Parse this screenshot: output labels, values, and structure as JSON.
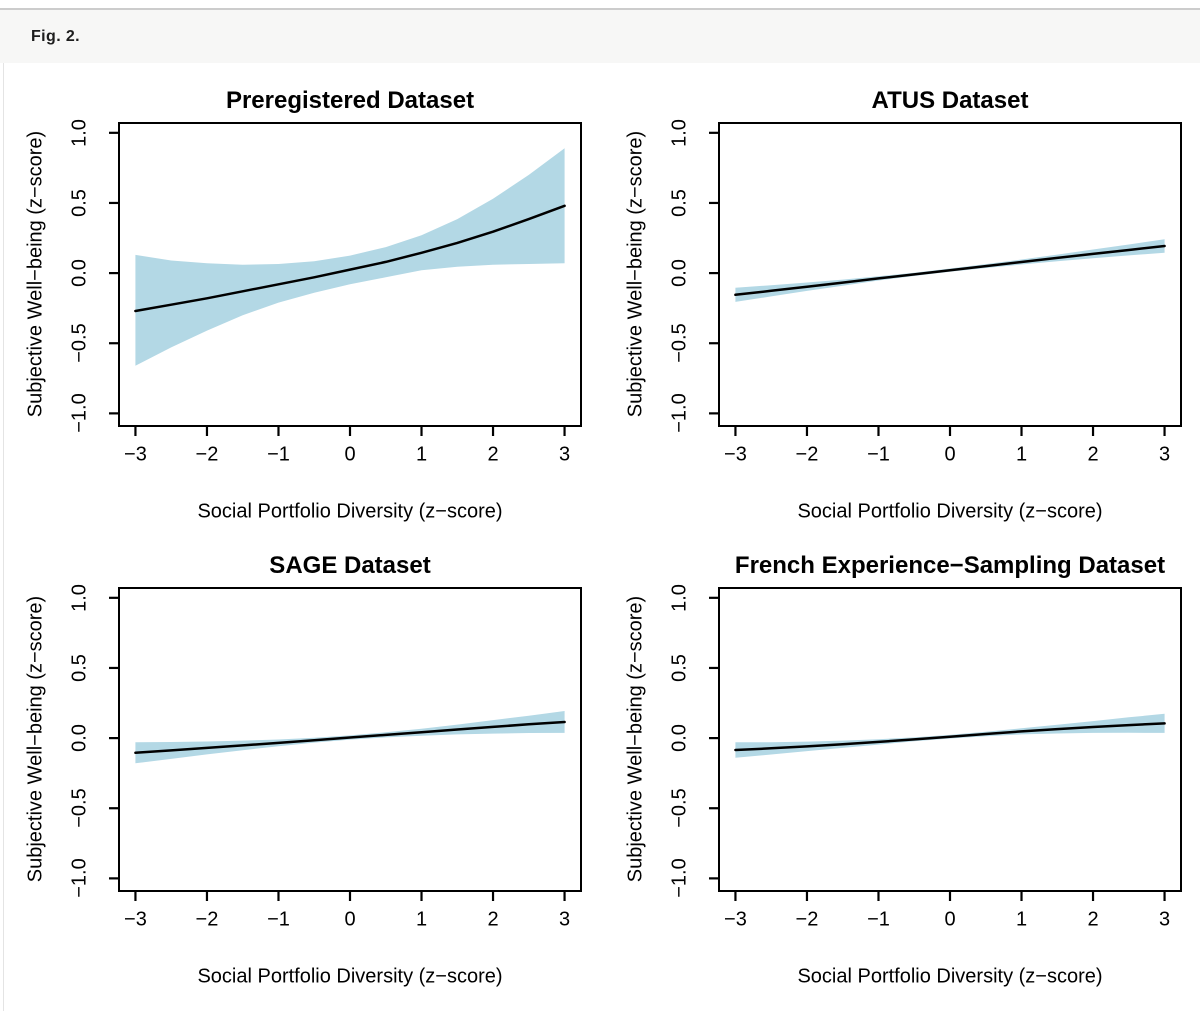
{
  "page": {
    "figure_label": "Fig. 2.",
    "background": "#ffffff",
    "header_background": "#f7f7f6",
    "header_border_color": "#cccccc"
  },
  "chart_data": [
    {
      "type": "line",
      "title": "Preregistered Dataset",
      "xlabel": "Social Portfolio Diversity (z−score)",
      "ylabel": "Subjective Well−being (z−score)",
      "xlim": [
        -3.23,
        3.23
      ],
      "ylim": [
        -1.09,
        1.07
      ],
      "grid": false,
      "legend": "none",
      "band_color": "#b3d8e5",
      "line_color": "#000000",
      "x_tick_values": [
        -3,
        -2,
        -1,
        0,
        1,
        2,
        3
      ],
      "x_tick_labels": [
        "−3",
        "−2",
        "−1",
        "0",
        "1",
        "2",
        "3"
      ],
      "y_tick_values": [
        -1.0,
        -0.5,
        0.0,
        0.5,
        1.0
      ],
      "y_tick_labels": [
        "−1.0",
        "−0.5",
        "0.0",
        "0.5",
        "1.0"
      ],
      "x": [
        -3,
        -2.5,
        -2,
        -1.5,
        -1,
        -0.5,
        0,
        0.5,
        1,
        1.5,
        2,
        2.5,
        3
      ],
      "fit": [
        -0.27,
        -0.225,
        -0.18,
        -0.13,
        -0.08,
        -0.03,
        0.025,
        0.08,
        0.145,
        0.215,
        0.295,
        0.385,
        0.48
      ],
      "ci_lower": [
        -0.66,
        -0.53,
        -0.41,
        -0.3,
        -0.21,
        -0.14,
        -0.08,
        -0.03,
        0.02,
        0.045,
        0.06,
        0.065,
        0.07
      ],
      "ci_upper": [
        0.13,
        0.09,
        0.07,
        0.06,
        0.065,
        0.085,
        0.125,
        0.185,
        0.27,
        0.385,
        0.53,
        0.7,
        0.89
      ]
    },
    {
      "type": "line",
      "title": "ATUS Dataset",
      "xlabel": "Social Portfolio Diversity (z−score)",
      "ylabel": "Subjective Well−being (z−score)",
      "xlim": [
        -3.23,
        3.23
      ],
      "ylim": [
        -1.09,
        1.07
      ],
      "grid": false,
      "legend": "none",
      "band_color": "#b3d8e5",
      "line_color": "#000000",
      "x_tick_values": [
        -3,
        -2,
        -1,
        0,
        1,
        2,
        3
      ],
      "x_tick_labels": [
        "−3",
        "−2",
        "−1",
        "0",
        "1",
        "2",
        "3"
      ],
      "y_tick_values": [
        -1.0,
        -0.5,
        0.0,
        0.5,
        1.0
      ],
      "y_tick_labels": [
        "−1.0",
        "−0.5",
        "0.0",
        "0.5",
        "1.0"
      ],
      "x": [
        -3,
        -2.5,
        -2,
        -1.5,
        -1,
        -0.5,
        0,
        0.5,
        1,
        1.5,
        2,
        2.5,
        3
      ],
      "fit": [
        -0.155,
        -0.126,
        -0.097,
        -0.068,
        -0.038,
        -0.009,
        0.021,
        0.05,
        0.079,
        0.108,
        0.137,
        0.165,
        0.193
      ],
      "ci_lower": [
        -0.205,
        -0.166,
        -0.127,
        -0.09,
        -0.053,
        -0.021,
        0.009,
        0.036,
        0.061,
        0.084,
        0.106,
        0.126,
        0.145
      ],
      "ci_upper": [
        -0.105,
        -0.086,
        -0.067,
        -0.046,
        -0.023,
        0.003,
        0.033,
        0.064,
        0.097,
        0.132,
        0.168,
        0.204,
        0.241
      ]
    },
    {
      "type": "line",
      "title": "SAGE Dataset",
      "xlabel": "Social Portfolio Diversity (z−score)",
      "ylabel": "Subjective Well−being (z−score)",
      "xlim": [
        -3.23,
        3.23
      ],
      "ylim": [
        -1.09,
        1.07
      ],
      "grid": false,
      "legend": "none",
      "band_color": "#b3d8e5",
      "line_color": "#000000",
      "x_tick_values": [
        -3,
        -2,
        -1,
        0,
        1,
        2,
        3
      ],
      "x_tick_labels": [
        "−3",
        "−2",
        "−1",
        "0",
        "1",
        "2",
        "3"
      ],
      "y_tick_values": [
        -1.0,
        -0.5,
        0.0,
        0.5,
        1.0
      ],
      "y_tick_labels": [
        "−1.0",
        "−0.5",
        "0.0",
        "0.5",
        "1.0"
      ],
      "x": [
        -3,
        -2.5,
        -2,
        -1.5,
        -1,
        -0.5,
        0,
        0.5,
        1,
        1.5,
        2,
        2.5,
        3
      ],
      "fit": [
        -0.105,
        -0.088,
        -0.07,
        -0.052,
        -0.034,
        -0.015,
        0.004,
        0.023,
        0.042,
        0.061,
        0.08,
        0.098,
        0.115
      ],
      "ci_lower": [
        -0.18,
        -0.148,
        -0.116,
        -0.086,
        -0.058,
        -0.032,
        -0.011,
        0.005,
        0.017,
        0.026,
        0.032,
        0.036,
        0.037
      ],
      "ci_upper": [
        -0.03,
        -0.028,
        -0.024,
        -0.018,
        -0.01,
        0.002,
        0.019,
        0.041,
        0.067,
        0.096,
        0.128,
        0.16,
        0.193
      ]
    },
    {
      "type": "line",
      "title": "French Experience−Sampling Dataset",
      "xlabel": "Social Portfolio Diversity (z−score)",
      "ylabel": "Subjective Well−being (z−score)",
      "xlim": [
        -3.23,
        3.23
      ],
      "ylim": [
        -1.09,
        1.07
      ],
      "grid": false,
      "legend": "none",
      "band_color": "#b3d8e5",
      "line_color": "#000000",
      "x_tick_values": [
        -3,
        -2,
        -1,
        0,
        1,
        2,
        3
      ],
      "x_tick_labels": [
        "−3",
        "−2",
        "−1",
        "0",
        "1",
        "2",
        "3"
      ],
      "y_tick_values": [
        -1.0,
        -0.5,
        0.0,
        0.5,
        1.0
      ],
      "y_tick_labels": [
        "−1.0",
        "−0.5",
        "0.0",
        "0.5",
        "1.0"
      ],
      "x": [
        -3,
        -2.5,
        -2,
        -1.5,
        -1,
        -0.5,
        0,
        0.5,
        1,
        1.5,
        2,
        2.5,
        3
      ],
      "fit": [
        -0.085,
        -0.073,
        -0.059,
        -0.044,
        -0.027,
        -0.009,
        0.01,
        0.029,
        0.048,
        0.064,
        0.079,
        0.093,
        0.105
      ],
      "ci_lower": [
        -0.14,
        -0.117,
        -0.093,
        -0.07,
        -0.046,
        -0.023,
        -0.003,
        0.013,
        0.026,
        0.033,
        0.037,
        0.038,
        0.037
      ],
      "ci_upper": [
        -0.03,
        -0.029,
        -0.025,
        -0.018,
        -0.008,
        0.005,
        0.023,
        0.045,
        0.07,
        0.095,
        0.121,
        0.148,
        0.173
      ]
    }
  ]
}
